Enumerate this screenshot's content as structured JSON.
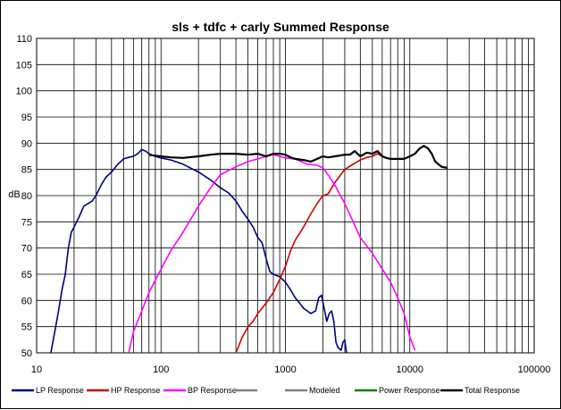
{
  "chart_data": {
    "type": "line",
    "title": "sls + tdfc + carly  Summed Response",
    "xlabel": "",
    "ylabel": "dB",
    "x_scale": "log",
    "xlim": [
      10,
      100000
    ],
    "ylim": [
      50,
      110
    ],
    "x_ticks": [
      "10",
      "100",
      "1000",
      "10000",
      "100000"
    ],
    "y_ticks": [
      "50",
      "55",
      "60",
      "65",
      "70",
      "75",
      "80",
      "85",
      "90",
      "95",
      "100",
      "105",
      "110"
    ],
    "grid": true,
    "legend_position": "bottom",
    "series": [
      {
        "name": "LP Response",
        "color": "#000080",
        "points": [
          [
            13,
            50
          ],
          [
            14,
            54
          ],
          [
            15,
            58
          ],
          [
            16,
            62
          ],
          [
            17,
            65
          ],
          [
            18,
            70
          ],
          [
            19,
            73
          ],
          [
            20,
            74
          ],
          [
            22,
            76
          ],
          [
            24,
            78
          ],
          [
            26,
            78.5
          ],
          [
            28,
            79
          ],
          [
            30,
            80
          ],
          [
            33,
            82
          ],
          [
            36,
            83.5
          ],
          [
            40,
            84.5
          ],
          [
            45,
            86
          ],
          [
            50,
            87
          ],
          [
            55,
            87.3
          ],
          [
            60,
            87.5
          ],
          [
            65,
            88
          ],
          [
            70,
            88.8
          ],
          [
            75,
            88.5
          ],
          [
            80,
            88
          ],
          [
            90,
            87.5
          ],
          [
            100,
            87.2
          ],
          [
            120,
            86.8
          ],
          [
            150,
            86
          ],
          [
            200,
            84.5
          ],
          [
            250,
            83
          ],
          [
            300,
            81.5
          ],
          [
            350,
            80.5
          ],
          [
            400,
            79
          ],
          [
            450,
            77
          ],
          [
            500,
            75.5
          ],
          [
            550,
            74
          ],
          [
            600,
            72
          ],
          [
            650,
            71
          ],
          [
            700,
            68
          ],
          [
            750,
            65.5
          ],
          [
            800,
            65
          ],
          [
            900,
            64.5
          ],
          [
            1000,
            63.5
          ],
          [
            1100,
            62
          ],
          [
            1200,
            60.5
          ],
          [
            1300,
            59.5
          ],
          [
            1400,
            58.5
          ],
          [
            1600,
            57.5
          ],
          [
            1750,
            58
          ],
          [
            1850,
            60.5
          ],
          [
            1950,
            61
          ],
          [
            2050,
            58.5
          ],
          [
            2150,
            56
          ],
          [
            2250,
            57.5
          ],
          [
            2350,
            58
          ],
          [
            2450,
            56
          ],
          [
            2550,
            52
          ],
          [
            2650,
            51
          ],
          [
            2800,
            50.5
          ],
          [
            2900,
            52
          ],
          [
            3000,
            52.5
          ],
          [
            3100,
            50
          ]
        ]
      },
      {
        "name": "HP Response",
        "color": "#CC0000",
        "points": [
          [
            400,
            50
          ],
          [
            450,
            53
          ],
          [
            500,
            55
          ],
          [
            550,
            56
          ],
          [
            600,
            57.5
          ],
          [
            700,
            59.5
          ],
          [
            800,
            61.5
          ],
          [
            900,
            64
          ],
          [
            1000,
            66.5
          ],
          [
            1100,
            69.5
          ],
          [
            1200,
            71.5
          ],
          [
            1400,
            74
          ],
          [
            1600,
            76.5
          ],
          [
            1800,
            78.5
          ],
          [
            2000,
            80
          ],
          [
            2200,
            80.3
          ],
          [
            2500,
            82.5
          ],
          [
            3000,
            85
          ],
          [
            3500,
            86
          ],
          [
            4000,
            86.8
          ],
          [
            4500,
            87.3
          ],
          [
            5000,
            87.5
          ],
          [
            5500,
            88
          ],
          [
            6000,
            87.5
          ]
        ]
      },
      {
        "name": "BP Response",
        "color": "#FF00FF",
        "points": [
          [
            55,
            50
          ],
          [
            60,
            54
          ],
          [
            70,
            58
          ],
          [
            80,
            61.5
          ],
          [
            100,
            66
          ],
          [
            120,
            69.5
          ],
          [
            150,
            73
          ],
          [
            200,
            78
          ],
          [
            250,
            81.5
          ],
          [
            300,
            84
          ],
          [
            400,
            85.5
          ],
          [
            500,
            86.5
          ],
          [
            600,
            87
          ],
          [
            700,
            87.5
          ],
          [
            800,
            87.8
          ],
          [
            900,
            87.5
          ],
          [
            1000,
            87.2
          ],
          [
            1200,
            87
          ],
          [
            1500,
            86
          ],
          [
            1800,
            85.8
          ],
          [
            2000,
            85.3
          ],
          [
            2200,
            84
          ],
          [
            2500,
            82
          ],
          [
            3000,
            78.5
          ],
          [
            3500,
            75
          ],
          [
            4000,
            72
          ],
          [
            5000,
            69
          ],
          [
            6000,
            66
          ],
          [
            7000,
            63.5
          ],
          [
            8000,
            60.5
          ],
          [
            9000,
            57.5
          ],
          [
            10000,
            53
          ],
          [
            11000,
            50.5
          ]
        ]
      },
      {
        "name": "",
        "color": "#808080",
        "points": []
      },
      {
        "name": "Modeled",
        "color": "#808080",
        "points": []
      },
      {
        "name": "Power Response",
        "color": "#008000",
        "points": []
      },
      {
        "name": "Total Response",
        "color": "#000000",
        "points": [
          [
            80,
            87.8
          ],
          [
            90,
            87.6
          ],
          [
            100,
            87.5
          ],
          [
            120,
            87.3
          ],
          [
            150,
            87.2
          ],
          [
            200,
            87.5
          ],
          [
            250,
            87.8
          ],
          [
            300,
            88
          ],
          [
            400,
            88
          ],
          [
            500,
            87.8
          ],
          [
            600,
            88
          ],
          [
            700,
            87.5
          ],
          [
            800,
            88
          ],
          [
            900,
            88
          ],
          [
            1000,
            87.8
          ],
          [
            1100,
            87.3
          ],
          [
            1200,
            87
          ],
          [
            1400,
            86.8
          ],
          [
            1600,
            86.5
          ],
          [
            1800,
            87
          ],
          [
            2000,
            87.5
          ],
          [
            2200,
            87.3
          ],
          [
            2500,
            87.5
          ],
          [
            3000,
            87.8
          ],
          [
            3300,
            87.8
          ],
          [
            3600,
            88.5
          ],
          [
            4000,
            87.5
          ],
          [
            4500,
            88.2
          ],
          [
            5000,
            88
          ],
          [
            5500,
            88.5
          ],
          [
            6000,
            87.5
          ],
          [
            6500,
            87.2
          ],
          [
            7000,
            87
          ],
          [
            8000,
            87
          ],
          [
            9000,
            87
          ],
          [
            10000,
            87.5
          ],
          [
            11000,
            88
          ],
          [
            12000,
            89
          ],
          [
            13000,
            89.5
          ],
          [
            14000,
            89
          ],
          [
            15000,
            88
          ],
          [
            16000,
            86.5
          ],
          [
            18000,
            85.5
          ],
          [
            20000,
            85.3
          ]
        ]
      }
    ]
  }
}
